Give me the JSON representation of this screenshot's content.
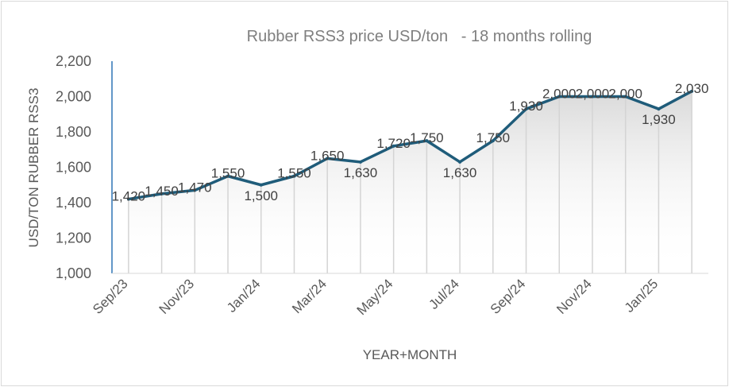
{
  "chart_data": {
    "type": "line",
    "title": "Rubber RSS3 price USD/ton   - 18 months rolling",
    "xlabel": "YEAR+MONTH",
    "ylabel": "USD/TON RUBBER RSS3",
    "ylim": [
      1000,
      2200
    ],
    "ytick_labels": [
      "1,000",
      "1,200",
      "1,400",
      "1,600",
      "1,800",
      "2,000",
      "2,200"
    ],
    "xtick_labels": [
      "Sep/23",
      "Nov/23",
      "Jan/24",
      "Mar/24",
      "May/24",
      "Jul/24",
      "Sep/24",
      "Nov/24",
      "Jan/25"
    ],
    "x": [
      "Sep/23",
      "Oct/23",
      "Nov/23",
      "Dec/23",
      "Jan/24",
      "Feb/24",
      "Mar/24",
      "Apr/24",
      "May/24",
      "Jun/24",
      "Jul/24",
      "Aug/24",
      "Sep/24",
      "Oct/24",
      "Nov/24",
      "Dec/24",
      "Jan/25",
      "Feb/25"
    ],
    "values": [
      1420,
      1450,
      1470,
      1550,
      1500,
      1550,
      1650,
      1630,
      1720,
      1750,
      1630,
      1750,
      1930,
      2000,
      2000,
      2000,
      1930,
      2030
    ],
    "data_labels": [
      "1,420",
      "1,450",
      "1,470",
      "1,550",
      "1,500",
      "1,550",
      "1,650",
      "1,630",
      "1,720",
      "1,750",
      "1,630",
      "1,750",
      "1,930",
      "2,000",
      "2,000",
      "2,000",
      "1,930",
      "2,030"
    ],
    "line_color": "#1f5c7a",
    "axis_color": "#2e75b6",
    "grid": false,
    "drop_lines": true,
    "area_gradient": true,
    "legend": "none"
  }
}
